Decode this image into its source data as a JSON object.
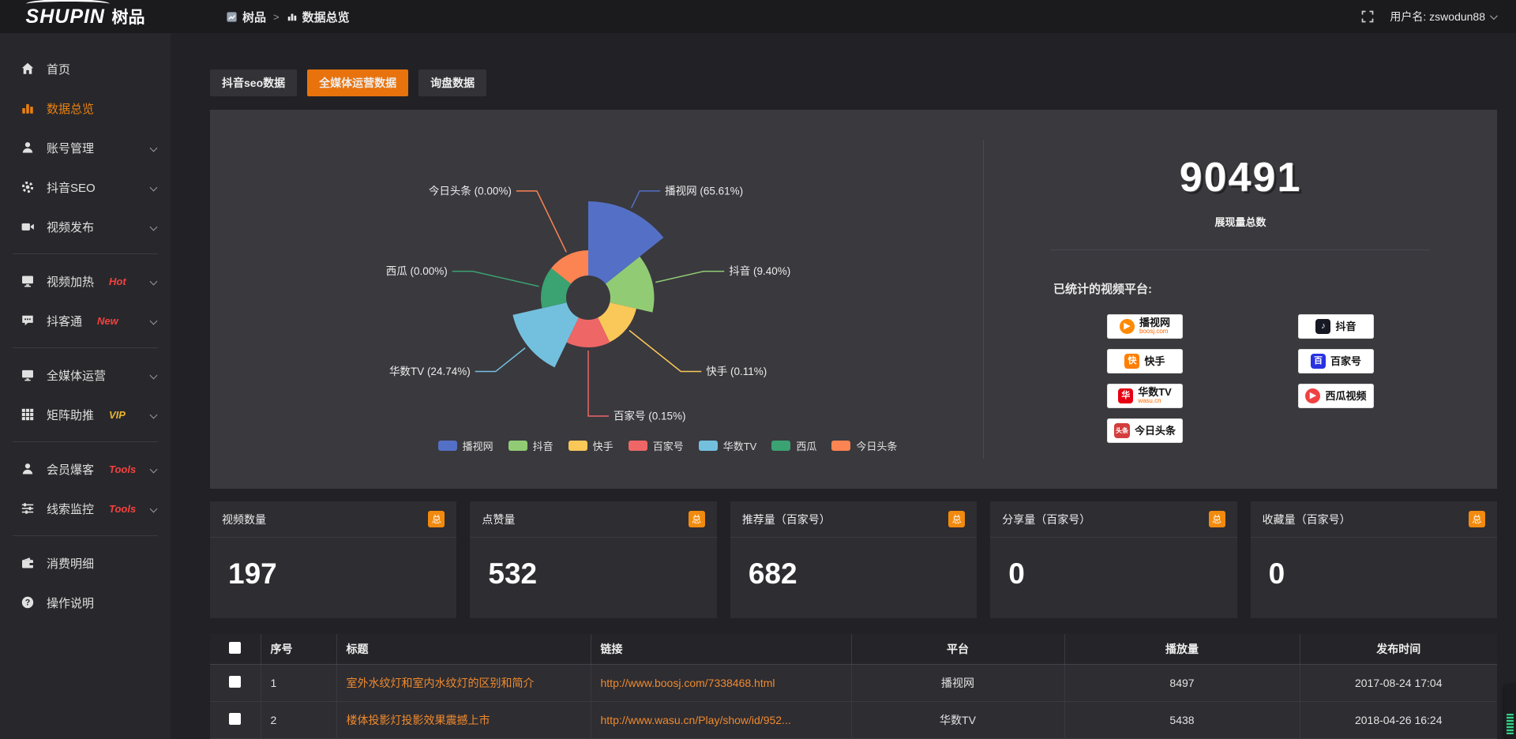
{
  "header": {
    "logo_en": "SHUPIN",
    "logo_cn": "树品",
    "breadcrumb": [
      "树品",
      "数据总览"
    ],
    "user_label": "用户名: zswodun88"
  },
  "sidebar": {
    "items": [
      {
        "label": "首页",
        "icon": "home"
      },
      {
        "label": "数据总览",
        "icon": "chart",
        "active": true
      },
      {
        "label": "账号管理",
        "icon": "user",
        "chevron": true
      },
      {
        "label": "抖音SEO",
        "icon": "gear",
        "chevron": true
      },
      {
        "label": "视频发布",
        "icon": "video",
        "chevron": true,
        "divider_after": true
      },
      {
        "label": "视频加热",
        "icon": "heat",
        "badge": "Hot",
        "badge_color": "#f5413d",
        "chevron": true
      },
      {
        "label": "抖客通",
        "icon": "chat",
        "badge": "New",
        "badge_color": "#f5413d",
        "chevron": true,
        "divider_after": true
      },
      {
        "label": "全媒体运营",
        "icon": "monitor",
        "chevron": true
      },
      {
        "label": "矩阵助推",
        "icon": "grid",
        "badge": "VIP",
        "badge_color": "#e9b331",
        "chevron": true,
        "divider_after": true
      },
      {
        "label": "会员爆客",
        "icon": "user2",
        "badge": "Tools",
        "badge_color": "#f5413d",
        "chevron": true
      },
      {
        "label": "线索监控",
        "icon": "sliders",
        "badge": "Tools",
        "badge_color": "#f5413d",
        "chevron": true,
        "divider_after": true
      },
      {
        "label": "消费明细",
        "icon": "wallet"
      },
      {
        "label": "操作说明",
        "icon": "question"
      }
    ]
  },
  "tabs": [
    {
      "label": "抖音seo数据",
      "active": false
    },
    {
      "label": "全媒体运营数据",
      "active": true
    },
    {
      "label": "询盘数据",
      "active": false
    }
  ],
  "chart_data": {
    "type": "pie",
    "variant": "rose-donut",
    "legend_position": "bottom",
    "label_format": "{name} ({pct}%)",
    "items": [
      {
        "name": "播视网",
        "pct": "65.61",
        "value": 65.61,
        "color": "#5470c6"
      },
      {
        "name": "抖音",
        "pct": "9.40",
        "value": 9.4,
        "color": "#91cc75"
      },
      {
        "name": "快手",
        "pct": "0.11",
        "value": 0.11,
        "color": "#fac858"
      },
      {
        "name": "百家号",
        "pct": "0.15",
        "value": 0.15,
        "color": "#ee6666"
      },
      {
        "name": "华数TV",
        "pct": "24.74",
        "value": 24.74,
        "color": "#73c0de"
      },
      {
        "name": "西瓜",
        "pct": "0.00",
        "value": 0,
        "color": "#3ba272"
      },
      {
        "name": "今日头条",
        "pct": "0.00",
        "value": 0,
        "color": "#fc8452"
      }
    ]
  },
  "summary": {
    "total": "90491",
    "total_label": "展现量总数",
    "platforms_label": "已统计的视频平台:",
    "platforms": [
      {
        "name": "播视网",
        "sub": "boosj.com",
        "icon_bg": "#ff8a00",
        "glyph": "▶",
        "shape": "round",
        "col": 0
      },
      {
        "name": "抖音",
        "icon_bg": "#161823",
        "glyph": "♪",
        "col": 1
      },
      {
        "name": "快手",
        "icon_bg": "#ff7e00",
        "glyph": "快",
        "col": 0
      },
      {
        "name": "百家号",
        "icon_bg": "#2932e1",
        "glyph": "百",
        "col": 1
      },
      {
        "name": "华数TV",
        "sub": "wasu.cn",
        "icon_bg": "#e60012",
        "glyph": "华",
        "col": 0
      },
      {
        "name": "西瓜视频",
        "icon_bg": "#f04142",
        "glyph": "▶",
        "shape": "round",
        "col": 1
      },
      {
        "name": "今日头条",
        "icon_bg": "#d43d3d",
        "glyph": "头条",
        "col": 0
      }
    ]
  },
  "stat_cards": [
    {
      "title": "视频数量",
      "badge": "总",
      "value": "197"
    },
    {
      "title": "点赞量",
      "badge": "总",
      "value": "532"
    },
    {
      "title": "推荐量（百家号）",
      "badge": "总",
      "value": "682"
    },
    {
      "title": "分享量（百家号）",
      "badge": "总",
      "value": "0"
    },
    {
      "title": "收藏量（百家号）",
      "badge": "总",
      "value": "0"
    }
  ],
  "table": {
    "columns": [
      "序号",
      "标题",
      "链接",
      "平台",
      "播放量",
      "发布时间"
    ],
    "rows": [
      {
        "no": "1",
        "title": "室外水纹灯和室内水纹灯的区别和简介",
        "link": "http://www.boosj.com/7338468.html",
        "platform": "播视网",
        "plays": "8497",
        "time": "2017-08-24 17:04"
      },
      {
        "no": "2",
        "title": "楼体投影灯投影效果震撼上市",
        "link": "http://www.wasu.cn/Play/show/id/952...",
        "platform": "华数TV",
        "plays": "5438",
        "time": "2018-04-26 16:24"
      }
    ]
  }
}
